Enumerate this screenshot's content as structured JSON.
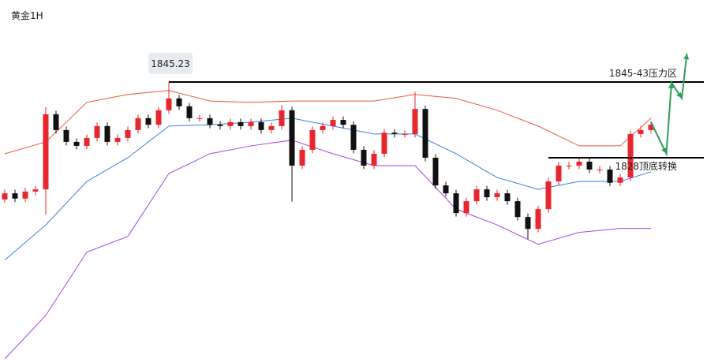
{
  "chart_data": {
    "type": "candlestick",
    "title": "黄金1H",
    "ylim": [
      1781.5,
      1863.9
    ],
    "up_color": "#e8262d",
    "down_color": "#111111",
    "open": [
      1818.5,
      1819.9,
      1818.7,
      1820.3,
      1820.8,
      1837.9,
      1834.3,
      1831.6,
      1830.7,
      1832.5,
      1835.2,
      1831.6,
      1832.5,
      1834.3,
      1837.0,
      1835.5,
      1838.8,
      1841.5,
      1839.7,
      1837.0,
      1837.0,
      1835.5,
      1835.2,
      1836.1,
      1835.2,
      1836.1,
      1834.3,
      1835.2,
      1838.8,
      1826.2,
      1829.8,
      1834.3,
      1835.2,
      1836.6,
      1835.5,
      1829.8,
      1826.2,
      1828.9,
      1833.7,
      1833.4,
      1833.4,
      1839.1,
      1828.0,
      1821.7,
      1819.9,
      1815.4,
      1818.1,
      1820.8,
      1819.0,
      1819.9,
      1818.1,
      1814.5,
      1811.8,
      1816.3,
      1822.6,
      1826.2,
      1826.2,
      1827.1,
      1825.3,
      1825.3,
      1822.3,
      1823.5,
      1833.4,
      1834.3
    ],
    "high": [
      1820.7,
      1820.7,
      1821.1,
      1821.6,
      1839.5,
      1838.7,
      1835.1,
      1832.4,
      1833.3,
      1836.0,
      1836.0,
      1833.3,
      1835.1,
      1837.8,
      1837.8,
      1839.6,
      1845.2,
      1842.3,
      1840.5,
      1837.8,
      1837.8,
      1836.3,
      1836.9,
      1836.9,
      1836.9,
      1836.9,
      1836.0,
      1840.0,
      1839.6,
      1830.6,
      1835.1,
      1836.0,
      1837.4,
      1837.4,
      1836.3,
      1830.6,
      1829.7,
      1834.5,
      1834.5,
      1834.2,
      1843.0,
      1839.9,
      1828.8,
      1822.5,
      1820.7,
      1818.9,
      1821.6,
      1821.6,
      1820.7,
      1820.7,
      1818.9,
      1815.3,
      1817.1,
      1823.4,
      1827.0,
      1827.0,
      1827.9,
      1827.9,
      1826.1,
      1826.1,
      1824.3,
      1834.2,
      1835.1,
      1836.3
    ],
    "low": [
      1817.7,
      1817.9,
      1817.9,
      1819.5,
      1815.0,
      1833.5,
      1830.8,
      1829.9,
      1829.9,
      1831.7,
      1830.8,
      1830.8,
      1831.7,
      1833.5,
      1834.7,
      1834.7,
      1838.0,
      1838.9,
      1836.2,
      1836.2,
      1834.7,
      1834.4,
      1834.4,
      1834.4,
      1834.4,
      1833.5,
      1833.5,
      1834.4,
      1818.0,
      1825.4,
      1829.0,
      1833.5,
      1834.4,
      1834.7,
      1829.0,
      1825.4,
      1825.4,
      1828.1,
      1832.6,
      1832.6,
      1832.6,
      1827.2,
      1820.9,
      1819.1,
      1814.6,
      1814.6,
      1817.3,
      1818.2,
      1818.2,
      1817.3,
      1813.7,
      1809.5,
      1811.0,
      1815.5,
      1821.8,
      1825.4,
      1825.4,
      1824.5,
      1824.5,
      1821.5,
      1821.5,
      1822.7,
      1832.6,
      1833.5
    ],
    "close": [
      1819.9,
      1818.7,
      1820.3,
      1820.8,
      1837.9,
      1834.3,
      1831.6,
      1830.7,
      1832.5,
      1835.2,
      1831.6,
      1832.5,
      1834.3,
      1837.0,
      1835.5,
      1838.8,
      1841.5,
      1839.7,
      1837.0,
      1837.0,
      1835.5,
      1835.2,
      1836.1,
      1835.2,
      1836.1,
      1834.3,
      1835.2,
      1838.8,
      1826.2,
      1829.8,
      1834.3,
      1835.2,
      1836.6,
      1835.5,
      1829.8,
      1826.2,
      1828.9,
      1833.7,
      1833.4,
      1833.4,
      1839.1,
      1828.0,
      1821.7,
      1819.9,
      1815.4,
      1818.1,
      1820.8,
      1819.0,
      1819.9,
      1818.1,
      1814.5,
      1811.8,
      1816.3,
      1822.6,
      1826.2,
      1826.2,
      1827.1,
      1825.3,
      1825.3,
      1822.3,
      1823.5,
      1833.4,
      1834.3,
      1835.5
    ],
    "bands": {
      "x": [
        0,
        4,
        8,
        12,
        16,
        20,
        24,
        28,
        32,
        36,
        40,
        44,
        48,
        52,
        56,
        60,
        63
      ],
      "series": [
        {
          "color": "#e8573a",
          "values": [
            1828.9,
            1831.6,
            1840.6,
            1842.4,
            1843.3,
            1840.9,
            1840.6,
            1840.9,
            1840.9,
            1840.9,
            1842.4,
            1841.5,
            1838.8,
            1835.2,
            1830.7,
            1830.7,
            1837.0
          ]
        },
        {
          "color": "#3b7de0",
          "values": [
            1804.7,
            1812.7,
            1822.6,
            1828.0,
            1835.2,
            1835.5,
            1836.1,
            1837.0,
            1835.2,
            1833.4,
            1833.4,
            1828.9,
            1823.5,
            1820.8,
            1822.6,
            1822.6,
            1824.8
          ]
        },
        {
          "color": "#a346e6",
          "values": [
            1782.2,
            1792.1,
            1806.5,
            1810.1,
            1824.4,
            1828.9,
            1830.7,
            1832.0,
            1828.9,
            1826.2,
            1826.2,
            1816.3,
            1812.7,
            1808.3,
            1811.0,
            1811.9,
            1811.9
          ]
        }
      ]
    },
    "levels": [
      {
        "value": 1845.23,
        "label": "1845.23",
        "note": "1845-43压力区",
        "from_x": 16
      },
      {
        "value": 1828,
        "note": "1828顶底转换",
        "from_x": 53
      }
    ],
    "forecast": {
      "color": "#2e9e5b",
      "x": [
        63,
        64.5,
        65,
        66,
        66.5
      ],
      "values": [
        1836.1,
        1828.9,
        1845.1,
        1841.5,
        1851.7
      ]
    }
  }
}
